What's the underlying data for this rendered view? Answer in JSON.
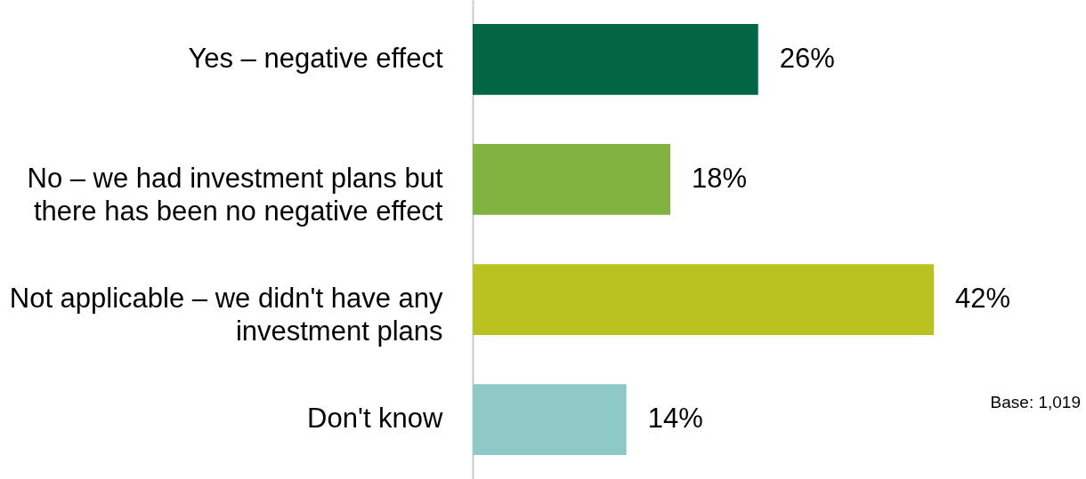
{
  "chart_data": {
    "type": "bar",
    "orientation": "horizontal",
    "categories": [
      "Yes – negative effect",
      "No – we had investment plans but there has been no negative effect",
      "Not applicable – we didn't have any investment plans",
      "Don't know"
    ],
    "values": [
      26,
      18,
      42,
      14
    ],
    "colors": [
      "#006643",
      "#82b341",
      "#b9c21f",
      "#8ec9c8"
    ],
    "value_labels": [
      "26%",
      "18%",
      "42%",
      "14%"
    ],
    "annotations": [
      "Base: 1,019"
    ]
  }
}
